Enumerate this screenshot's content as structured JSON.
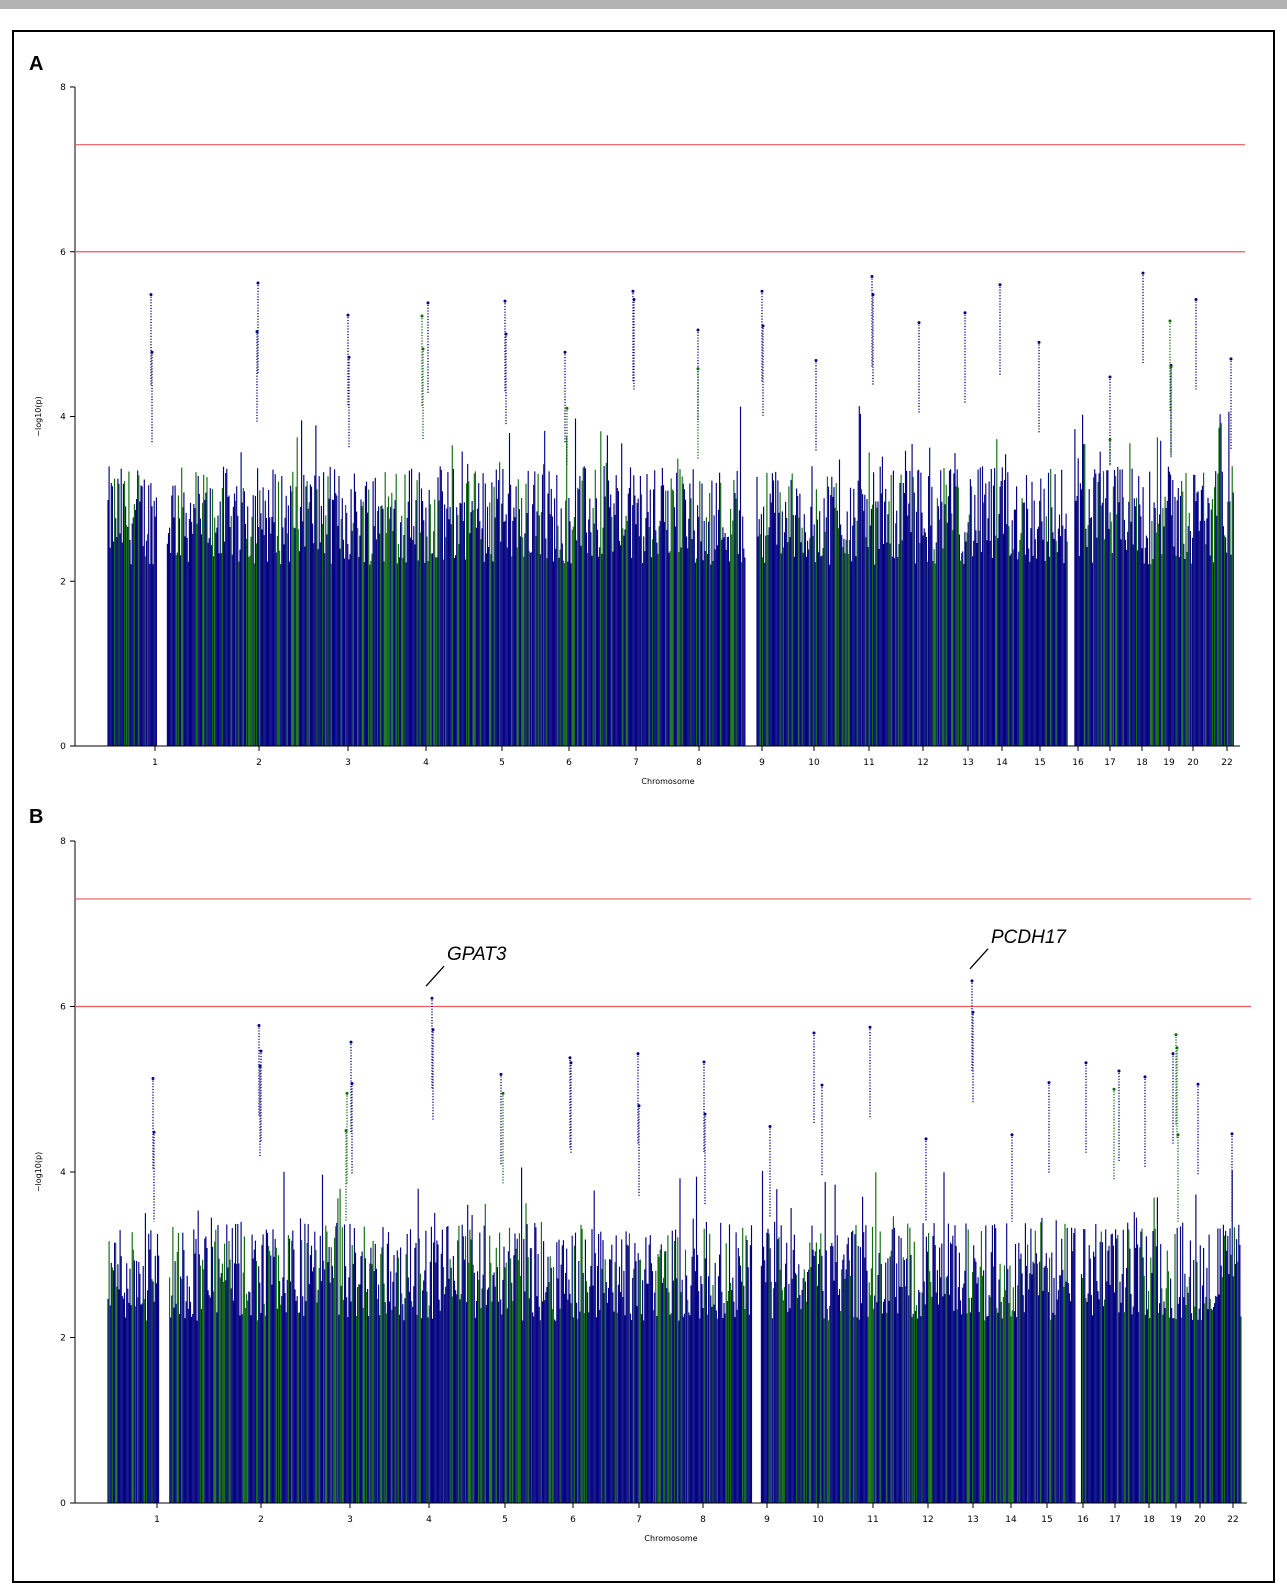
{
  "colors": {
    "blue": "#000080",
    "green": "#0f6b0f",
    "threshold": "#ec5a5a",
    "axis": "#000000"
  },
  "chart_data": [
    {
      "type": "scatter",
      "panel_label": "A",
      "xlabel": "Chromosome",
      "ylabel": "−log10(p)",
      "ylim": [
        0,
        8
      ],
      "yticks": [
        0,
        2,
        4,
        6,
        8
      ],
      "thresholds": [
        7.3,
        6.0
      ],
      "chromosomes": [
        "1",
        "2",
        "3",
        "4",
        "5",
        "6",
        "7",
        "8",
        "9",
        "10",
        "11",
        "12",
        "13",
        "14",
        "15",
        "16",
        "17",
        "18",
        "19",
        "20",
        "22"
      ],
      "series": [
        {
          "color": "blue",
          "values": [
            {
              "chr": "1",
              "y": 5.48
            },
            {
              "chr": "1",
              "y": 4.78
            },
            {
              "chr": "2",
              "y": 5.03
            },
            {
              "chr": "2",
              "y": 5.62
            },
            {
              "chr": "3",
              "y": 5.23
            },
            {
              "chr": "3",
              "y": 4.72
            },
            {
              "chr": "4",
              "y": 5.38
            },
            {
              "chr": "5",
              "y": 5.4
            },
            {
              "chr": "5",
              "y": 5.0
            },
            {
              "chr": "6",
              "y": 4.78
            },
            {
              "chr": "7",
              "y": 5.52
            },
            {
              "chr": "7",
              "y": 5.42
            },
            {
              "chr": "8",
              "y": 5.05
            },
            {
              "chr": "9",
              "y": 5.52
            },
            {
              "chr": "9",
              "y": 5.1
            },
            {
              "chr": "10",
              "y": 4.68
            },
            {
              "chr": "11",
              "y": 5.7
            },
            {
              "chr": "11",
              "y": 5.48
            },
            {
              "chr": "12",
              "y": 5.14
            },
            {
              "chr": "13",
              "y": 5.26
            },
            {
              "chr": "14",
              "y": 5.6
            },
            {
              "chr": "15",
              "y": 4.9
            },
            {
              "chr": "17",
              "y": 4.48
            },
            {
              "chr": "18",
              "y": 5.74
            },
            {
              "chr": "19",
              "y": 4.62
            },
            {
              "chr": "20",
              "y": 5.42
            },
            {
              "chr": "22",
              "y": 4.7
            }
          ]
        },
        {
          "color": "green",
          "values": [
            {
              "chr": "4",
              "y": 5.22
            },
            {
              "chr": "4",
              "y": 4.82
            },
            {
              "chr": "6",
              "y": 4.1
            },
            {
              "chr": "8",
              "y": 4.58
            },
            {
              "chr": "17",
              "y": 3.72
            },
            {
              "chr": "19",
              "y": 5.16
            },
            {
              "chr": "19",
              "y": 4.6
            }
          ]
        }
      ],
      "annotations": []
    },
    {
      "type": "scatter",
      "panel_label": "B",
      "xlabel": "Chromosome",
      "ylabel": "−log10(p)",
      "ylim": [
        0,
        8
      ],
      "yticks": [
        0,
        2,
        4,
        6,
        8
      ],
      "thresholds": [
        7.3,
        6.0
      ],
      "chromosomes": [
        "1",
        "2",
        "3",
        "4",
        "5",
        "6",
        "7",
        "8",
        "9",
        "10",
        "11",
        "12",
        "13",
        "14",
        "15",
        "16",
        "17",
        "18",
        "19",
        "20",
        "22"
      ],
      "series": [
        {
          "color": "blue",
          "values": [
            {
              "chr": "1",
              "y": 5.13
            },
            {
              "chr": "1",
              "y": 4.48
            },
            {
              "chr": "2",
              "y": 5.77
            },
            {
              "chr": "2",
              "y": 5.28
            },
            {
              "chr": "2",
              "y": 5.46
            },
            {
              "chr": "3",
              "y": 5.57
            },
            {
              "chr": "3",
              "y": 5.07
            },
            {
              "chr": "4",
              "y": 6.1
            },
            {
              "chr": "4",
              "y": 5.72
            },
            {
              "chr": "5",
              "y": 5.18
            },
            {
              "chr": "6",
              "y": 5.38
            },
            {
              "chr": "6",
              "y": 5.32
            },
            {
              "chr": "7",
              "y": 5.43
            },
            {
              "chr": "7",
              "y": 4.8
            },
            {
              "chr": "8",
              "y": 5.33
            },
            {
              "chr": "8",
              "y": 4.7
            },
            {
              "chr": "9",
              "y": 4.55
            },
            {
              "chr": "10",
              "y": 5.05
            },
            {
              "chr": "10",
              "y": 5.68
            },
            {
              "chr": "11",
              "y": 5.75
            },
            {
              "chr": "12",
              "y": 4.4
            },
            {
              "chr": "13",
              "y": 6.31
            },
            {
              "chr": "13",
              "y": 5.93
            },
            {
              "chr": "14",
              "y": 4.45
            },
            {
              "chr": "15",
              "y": 5.08
            },
            {
              "chr": "16",
              "y": 5.32
            },
            {
              "chr": "17",
              "y": 5.22
            },
            {
              "chr": "18",
              "y": 5.15
            },
            {
              "chr": "19",
              "y": 5.43
            },
            {
              "chr": "20",
              "y": 5.06
            },
            {
              "chr": "22",
              "y": 4.46
            }
          ]
        },
        {
          "color": "green",
          "values": [
            {
              "chr": "3",
              "y": 4.5
            },
            {
              "chr": "3",
              "y": 4.95
            },
            {
              "chr": "5",
              "y": 4.95
            },
            {
              "chr": "17",
              "y": 5.0
            },
            {
              "chr": "19",
              "y": 5.66
            },
            {
              "chr": "19",
              "y": 5.5
            },
            {
              "chr": "19",
              "y": 4.45
            }
          ]
        }
      ],
      "annotations": [
        {
          "label": "GPAT3",
          "chr": "4",
          "y": 6.1
        },
        {
          "label": "PCDH17",
          "chr": "13",
          "y": 6.31
        }
      ]
    }
  ]
}
